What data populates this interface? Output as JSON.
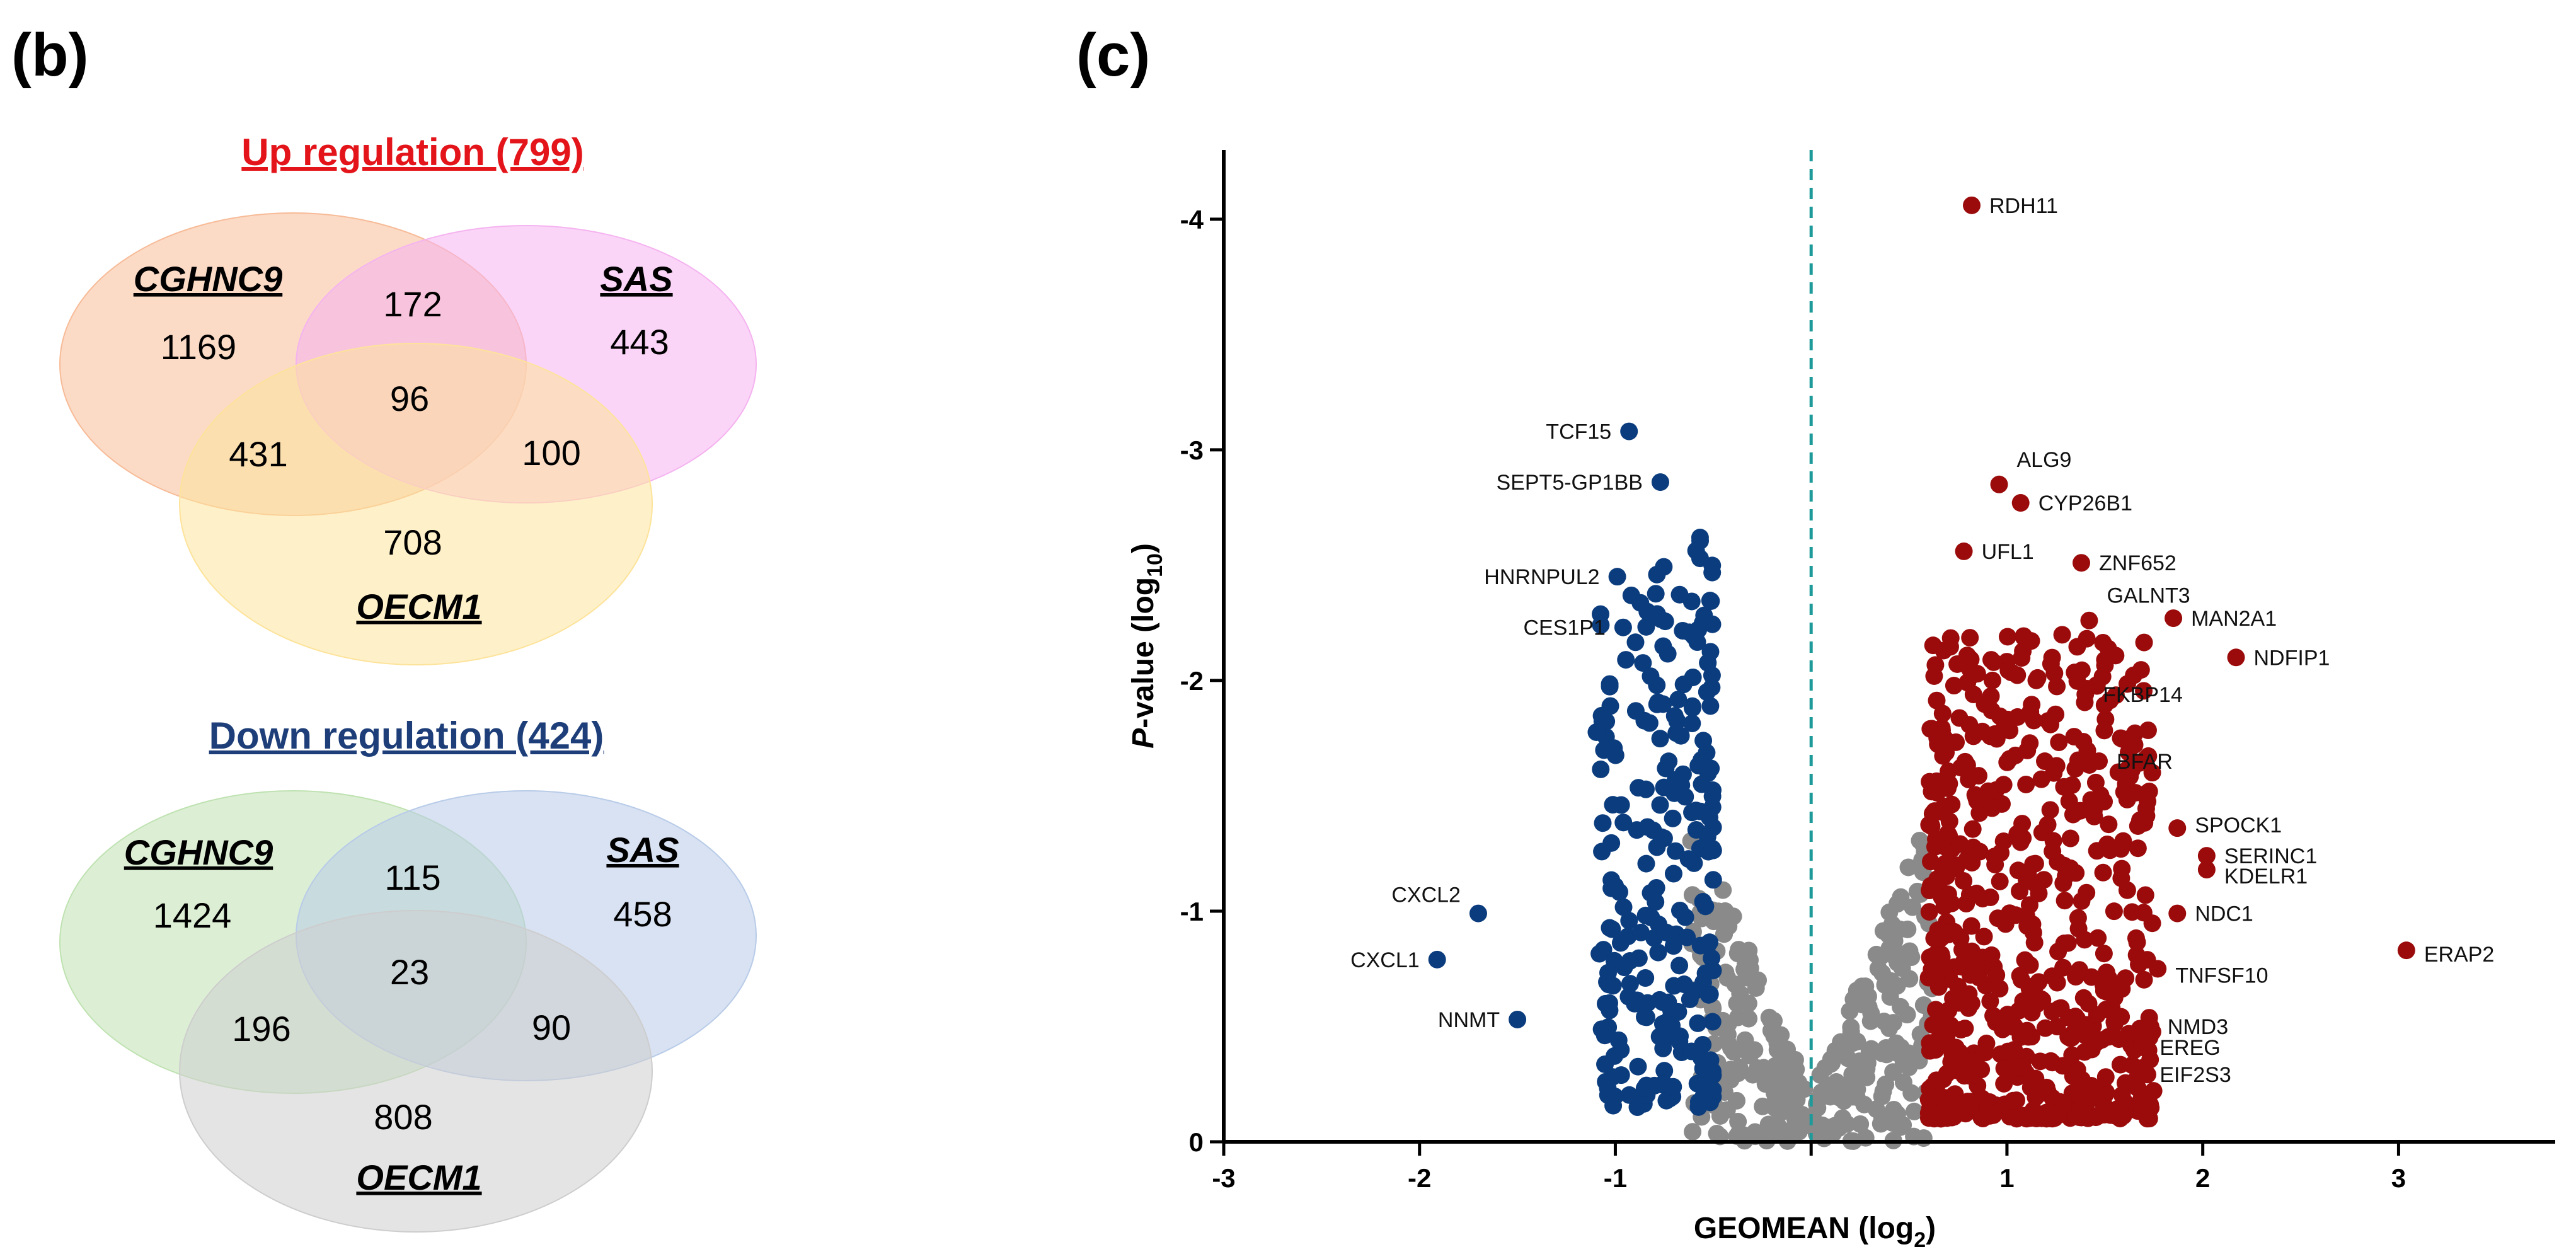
{
  "panels": {
    "b_label": "(b)",
    "c_label": "(c)"
  },
  "colors": {
    "up_title": "#e3151a",
    "down_title": "#1d3e78",
    "cghnc9_up": "#f7bb97",
    "sas_up": "#f5b3f0",
    "oecm1_up": "#fde39a",
    "cghnc9_down": "#bfe2b1",
    "sas_down": "#b8cbe8",
    "oecm1_down": "#cdcdcd",
    "up_points": "#9b0b0b",
    "down_points": "#0b3c7d",
    "ns_points": "#8a8a8a",
    "threshold_line": "#1d9a99"
  },
  "venn_up": {
    "title": "Up regulation (799)",
    "sets": [
      "CGHNC9",
      "SAS",
      "OECM1"
    ],
    "regions": {
      "cghnc9_only": "1169",
      "cghnc9_sas": "172",
      "sas_only": "443",
      "all_three": "96",
      "cghnc9_oecm1": "431",
      "sas_oecm1": "100",
      "oecm1_only": "708"
    }
  },
  "venn_down": {
    "title": "Down regulation (424)",
    "sets": [
      "CGHNC9",
      "SAS",
      "OECM1"
    ],
    "regions": {
      "cghnc9_only": "1424",
      "cghnc9_sas": "115",
      "sas_only": "458",
      "all_three": "23",
      "cghnc9_oecm1": "196",
      "sas_oecm1": "90",
      "oecm1_only": "808"
    }
  },
  "chart_data": {
    "type": "scatter",
    "title": "",
    "xlabel": "GEOMEAN (log",
    "xlabel_sub": "2",
    "xlabel_close": ")",
    "ylabel_italic": "P",
    "ylabel": "-value (log",
    "ylabel_sub": "10",
    "ylabel_close": ")",
    "xlim": [
      -3,
      3.8
    ],
    "ylim": [
      0,
      -4.3
    ],
    "x_ticks": [
      -3,
      -2,
      -1,
      1,
      2,
      3
    ],
    "x_tick_labels": [
      "-3",
      "-2",
      "-1",
      "1",
      "2",
      "3"
    ],
    "y_ticks": [
      0,
      -1,
      -2,
      -3,
      -4
    ],
    "y_tick_labels": [
      "0",
      "-1",
      "-2",
      "-3",
      "-4"
    ],
    "threshold_x": 0,
    "labeled_points": [
      {
        "gene": "RDH11",
        "x": 0.82,
        "y": -4.06,
        "group": "up"
      },
      {
        "gene": "ALG9",
        "x": 0.96,
        "y": -2.85,
        "group": "up"
      },
      {
        "gene": "CYP26B1",
        "x": 1.07,
        "y": -2.77,
        "group": "up"
      },
      {
        "gene": "UFL1",
        "x": 0.78,
        "y": -2.56,
        "group": "up"
      },
      {
        "gene": "ZNF652",
        "x": 1.38,
        "y": -2.51,
        "group": "up"
      },
      {
        "gene": "GALNT3",
        "x": 1.42,
        "y": -2.26,
        "group": "up"
      },
      {
        "gene": "MAN2A1",
        "x": 1.85,
        "y": -2.27,
        "group": "up"
      },
      {
        "gene": "NDFIP1",
        "x": 2.17,
        "y": -2.1,
        "group": "up"
      },
      {
        "gene": "FKBP14",
        "x": 1.4,
        "y": -1.94,
        "group": "up"
      },
      {
        "gene": "BFAR",
        "x": 1.47,
        "y": -1.65,
        "group": "up"
      },
      {
        "gene": "SPOCK1",
        "x": 1.87,
        "y": -1.36,
        "group": "up"
      },
      {
        "gene": "SERINC1",
        "x": 2.02,
        "y": -1.24,
        "group": "up"
      },
      {
        "gene": "KDELR1",
        "x": 2.02,
        "y": -1.18,
        "group": "up"
      },
      {
        "gene": "NDC1",
        "x": 1.87,
        "y": -0.99,
        "group": "up"
      },
      {
        "gene": "ERAP2",
        "x": 3.04,
        "y": -0.83,
        "group": "up"
      },
      {
        "gene": "TNFSF10",
        "x": 1.77,
        "y": -0.75,
        "group": "up"
      },
      {
        "gene": "NMD3",
        "x": 1.73,
        "y": -0.5,
        "group": "up"
      },
      {
        "gene": "EREG",
        "x": 1.69,
        "y": -0.41,
        "group": "up"
      },
      {
        "gene": "EIF2S3",
        "x": 1.69,
        "y": -0.32,
        "group": "up"
      },
      {
        "gene": "TCF15",
        "x": -0.93,
        "y": -3.08,
        "group": "down"
      },
      {
        "gene": "SEPT5-GP1BB",
        "x": -0.77,
        "y": -2.86,
        "group": "down"
      },
      {
        "gene": "HNRNPUL2",
        "x": -0.99,
        "y": -2.45,
        "group": "down"
      },
      {
        "gene": "CES1P1",
        "x": -0.96,
        "y": -2.23,
        "group": "down"
      },
      {
        "gene": "CXCL2",
        "x": -1.7,
        "y": -0.99,
        "group": "down"
      },
      {
        "gene": "CXCL1",
        "x": -1.91,
        "y": -0.79,
        "group": "down"
      },
      {
        "gene": "NNMT",
        "x": -1.5,
        "y": -0.53,
        "group": "down"
      }
    ],
    "clusters": [
      {
        "group": "up",
        "note_free": true,
        "x_range": [
          0.6,
          1.7
        ],
        "y_range": [
          -0.1,
          -2.3
        ]
      },
      {
        "group": "down",
        "note_free": true,
        "x_range": [
          -1.2,
          -0.5
        ],
        "y_range": [
          -0.15,
          -2.75
        ]
      },
      {
        "group": "ns_left",
        "note_free": true,
        "x_range": [
          -0.55,
          0
        ],
        "y_range": [
          0,
          -1.3
        ]
      },
      {
        "group": "ns_right",
        "note_free": true,
        "x_range": [
          0,
          0.6
        ],
        "y_range": [
          0,
          -1.3
        ]
      }
    ]
  }
}
